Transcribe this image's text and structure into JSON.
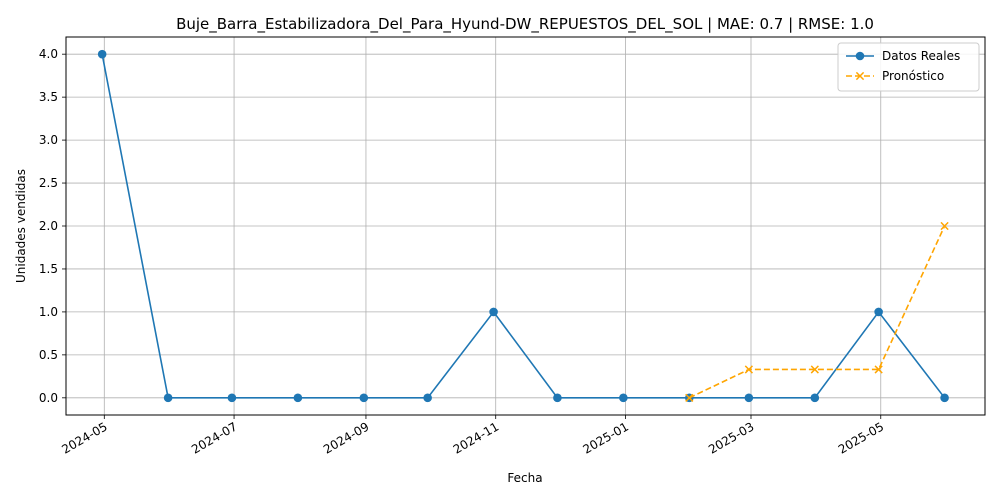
{
  "chart_data": {
    "type": "line",
    "title": "Buje_Barra_Estabilizadora_Del_Para_Hyund-DW_REPUESTOS_DEL_SOL | MAE: 0.7 | RMSE: 1.0",
    "xlabel": "Fecha",
    "ylabel": "Unidades vendidas",
    "ylim": [
      -0.2,
      4.2
    ],
    "xlim": [
      "2024-04-13",
      "2025-06-19"
    ],
    "y_ticks": [
      "0.0",
      "0.5",
      "1.0",
      "1.5",
      "2.0",
      "2.5",
      "3.0",
      "3.5",
      "4.0"
    ],
    "x_ticks": [
      "2024-05",
      "2024-07",
      "2024-09",
      "2024-11",
      "2025-01",
      "2025-03",
      "2025-05"
    ],
    "grid": true,
    "legend_position": "top-right",
    "series": [
      {
        "name": "Datos Reales",
        "color": "#1f77b4",
        "style": "solid",
        "marker": "circle",
        "points": [
          {
            "x": "2024-04-30",
            "y": 4
          },
          {
            "x": "2024-05-31",
            "y": 0
          },
          {
            "x": "2024-06-30",
            "y": 0
          },
          {
            "x": "2024-07-31",
            "y": 0
          },
          {
            "x": "2024-08-31",
            "y": 0
          },
          {
            "x": "2024-09-30",
            "y": 0
          },
          {
            "x": "2024-10-31",
            "y": 1
          },
          {
            "x": "2024-11-30",
            "y": 0
          },
          {
            "x": "2024-12-31",
            "y": 0
          },
          {
            "x": "2025-01-31",
            "y": 0
          },
          {
            "x": "2025-02-28",
            "y": 0
          },
          {
            "x": "2025-03-31",
            "y": 0
          },
          {
            "x": "2025-04-30",
            "y": 1
          },
          {
            "x": "2025-05-31",
            "y": 0
          }
        ]
      },
      {
        "name": "Pronóstico",
        "color": "#ffa500",
        "style": "dashed",
        "marker": "x",
        "points": [
          {
            "x": "2025-01-31",
            "y": 0
          },
          {
            "x": "2025-02-28",
            "y": 0.33
          },
          {
            "x": "2025-03-31",
            "y": 0.33
          },
          {
            "x": "2025-04-30",
            "y": 0.33
          },
          {
            "x": "2025-05-31",
            "y": 2
          }
        ]
      }
    ]
  }
}
